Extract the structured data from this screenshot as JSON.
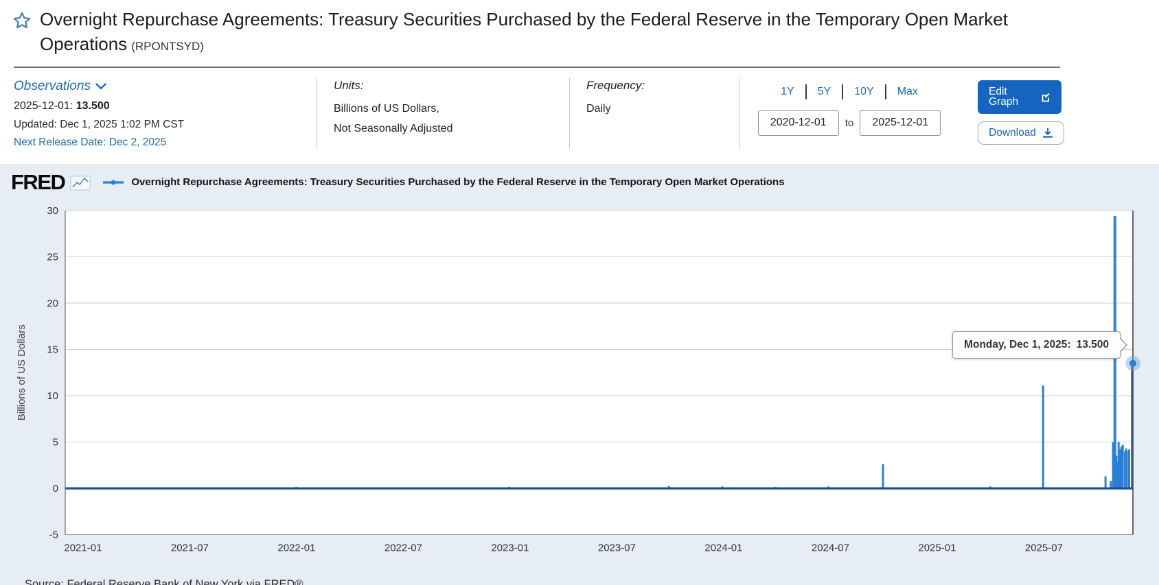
{
  "page": {
    "title": "Overnight Repurchase Agreements: Treasury Securities Purchased by the Federal Reserve in the Temporary Open Market Operations",
    "series_code": "(RPONTSYD)"
  },
  "observations": {
    "label": "Observations",
    "latest_date": "2025-12-01:",
    "latest_value": "13.500",
    "updated": "Updated: Dec 1, 2025 1:02 PM CST",
    "next_release": "Next Release Date: Dec 2, 2025"
  },
  "units": {
    "label": "Units:",
    "line1": "Billions of US Dollars,",
    "line2": "Not Seasonally Adjusted"
  },
  "frequency": {
    "label": "Frequency:",
    "value": "Daily"
  },
  "range_controls": {
    "presets": [
      "1Y",
      "5Y",
      "10Y",
      "Max"
    ],
    "start_date": "2020-12-01",
    "to_label": "to",
    "end_date": "2025-12-01"
  },
  "actions": {
    "edit_graph": "Edit Graph",
    "download": "Download"
  },
  "chart_header": {
    "logo": "FRED",
    "legend_label": "Overnight Repurchase Agreements: Treasury Securities Purchased by the Federal Reserve in the Temporary Open Market Operations"
  },
  "tooltip": {
    "label": "Monday, Dec 1, 2025:",
    "value": "13.500"
  },
  "source": "Source: Federal Reserve Bank of New York via FRED®",
  "colors": {
    "accent_blue": "#1565c0",
    "link_blue": "#1b6cb5",
    "series_blue": "#2b7fd4",
    "baseline_navy": "#1d4f8f",
    "panel_bg": "#e6edf4",
    "gridline": "#cfcfcf"
  },
  "chart_data": {
    "type": "line",
    "title": "Overnight Repurchase Agreements: Treasury Securities Purchased by the Federal Reserve in the Temporary Open Market Operations",
    "xlabel": "",
    "ylabel": "Billions of US Dollars",
    "ylim": [
      -5,
      30
    ],
    "yticks": [
      30,
      25,
      20,
      15,
      10,
      5,
      0,
      -5
    ],
    "xtick_labels": [
      "2021-01",
      "2021-07",
      "2022-01",
      "2022-07",
      "2023-01",
      "2023-07",
      "2024-01",
      "2024-07",
      "2025-01",
      "2025-07"
    ],
    "x_start": "2020-12-01",
    "x_end": "2025-12-01",
    "grid": true,
    "legend_position": "top",
    "baseline_value": 0,
    "points": [
      {
        "date": "2021-03-31",
        "value": 0.1
      },
      {
        "date": "2021-12-31",
        "value": 0.15
      },
      {
        "date": "2022-06-30",
        "value": 0.1
      },
      {
        "date": "2022-12-30",
        "value": 0.15
      },
      {
        "date": "2023-03-31",
        "value": 0.1
      },
      {
        "date": "2023-09-29",
        "value": 0.25
      },
      {
        "date": "2023-12-29",
        "value": 0.2
      },
      {
        "date": "2024-03-29",
        "value": 0.15
      },
      {
        "date": "2024-06-28",
        "value": 0.2
      },
      {
        "date": "2024-09-30",
        "value": 2.6
      },
      {
        "date": "2025-03-31",
        "value": 0.2
      },
      {
        "date": "2025-06-30",
        "value": 11.1
      },
      {
        "date": "2025-10-15",
        "value": 1.3
      },
      {
        "date": "2025-10-24",
        "value": 0.8
      },
      {
        "date": "2025-10-28",
        "value": 5.0
      },
      {
        "date": "2025-10-29",
        "value": 4.75
      },
      {
        "date": "2025-10-30",
        "value": 3.6
      },
      {
        "date": "2025-10-31",
        "value": 29.4
      },
      {
        "date": "2025-11-03",
        "value": 3.5
      },
      {
        "date": "2025-11-04",
        "value": 2.2
      },
      {
        "date": "2025-11-05",
        "value": 1.5
      },
      {
        "date": "2025-11-06",
        "value": 2.8
      },
      {
        "date": "2025-11-07",
        "value": 5.0
      },
      {
        "date": "2025-11-10",
        "value": 4.2
      },
      {
        "date": "2025-11-12",
        "value": 4.5
      },
      {
        "date": "2025-11-13",
        "value": 3.0
      },
      {
        "date": "2025-11-14",
        "value": 4.7
      },
      {
        "date": "2025-11-18",
        "value": 4.0
      },
      {
        "date": "2025-11-20",
        "value": 4.3
      },
      {
        "date": "2025-11-24",
        "value": 4.0
      },
      {
        "date": "2025-11-25",
        "value": 4.2
      },
      {
        "date": "2025-12-01",
        "value": 13.5
      }
    ],
    "last_point": {
      "date": "2025-12-01",
      "value": 13.5
    }
  }
}
